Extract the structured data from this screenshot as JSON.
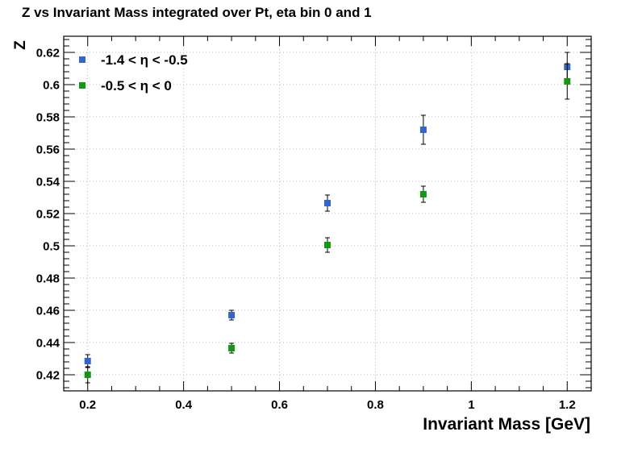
{
  "chart_data": {
    "type": "scatter",
    "title": "Z vs Invariant Mass integrated over Pt, eta bin 0 and 1",
    "xlabel": "Invariant Mass [GeV]",
    "ylabel": "Z",
    "xlim": [
      0.15,
      1.25
    ],
    "ylim": [
      0.41,
      0.63
    ],
    "x_ticks": [
      0.2,
      0.4,
      0.6,
      0.8,
      1,
      1.2
    ],
    "x_tick_labels": [
      "0.2",
      "0.4",
      "0.6",
      "0.8",
      "1",
      "1.2"
    ],
    "y_ticks": [
      0.42,
      0.44,
      0.46,
      0.48,
      0.5,
      0.52,
      0.54,
      0.56,
      0.58,
      0.6,
      0.62
    ],
    "y_tick_labels": [
      "0.42",
      "0.44",
      "0.46",
      "0.48",
      "0.5",
      "0.52",
      "0.54",
      "0.56",
      "0.58",
      "0.6",
      "0.62"
    ],
    "grid": true,
    "legend_position": "top-left",
    "series": [
      {
        "name": "-1.4 < η < -0.5",
        "color": "#3366cc",
        "x": [
          0.2,
          0.5,
          0.7,
          0.9,
          1.2
        ],
        "y": [
          0.4285,
          0.457,
          0.5265,
          0.572,
          0.611
        ],
        "yerr": [
          0.004,
          0.003,
          0.005,
          0.009,
          0.009
        ]
      },
      {
        "name": "-0.5 < η < 0",
        "color": "#119911",
        "x": [
          0.2,
          0.5,
          0.7,
          0.9,
          1.2
        ],
        "y": [
          0.42,
          0.4365,
          0.5005,
          0.532,
          0.602
        ],
        "yerr": [
          0.005,
          0.003,
          0.0045,
          0.005,
          0.011
        ]
      }
    ]
  }
}
